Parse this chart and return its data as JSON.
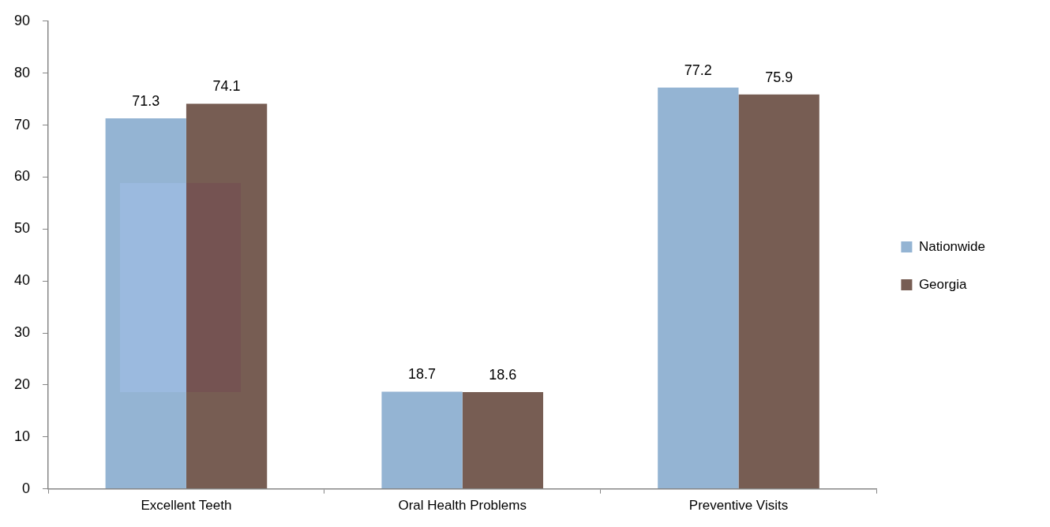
{
  "chart_data": {
    "type": "bar",
    "categories": [
      "Excellent Teeth",
      "Oral Health Problems",
      "Preventive Visits"
    ],
    "series": [
      {
        "name": "Nationwide",
        "color": "#94b4d3",
        "values": [
          71.3,
          18.7,
          77.2
        ]
      },
      {
        "name": "Georgia",
        "color": "#775d53",
        "values": [
          74.1,
          18.6,
          75.9
        ]
      }
    ],
    "ylim": [
      0,
      90
    ],
    "yticks": [
      0,
      10,
      20,
      30,
      40,
      50,
      60,
      70,
      80,
      90
    ],
    "legend": "right",
    "data_labels": true
  }
}
